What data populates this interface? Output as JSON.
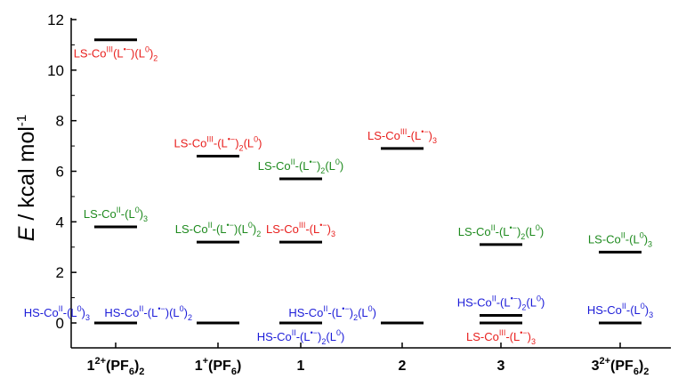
{
  "chart_data": {
    "type": "energy-level",
    "ylabel": "E / kcal mol-1",
    "ylim": [
      0,
      12
    ],
    "yticks": [
      0,
      2,
      4,
      6,
      8,
      10,
      12
    ],
    "categories": [
      {
        "main": "1",
        "sup": "2+",
        "paren": "(PF",
        "sub1": "6",
        "close": ")",
        "sub2": "2"
      },
      {
        "main": "1",
        "sup": "+",
        "paren": "(PF",
        "sub1": "6",
        "close": ")",
        "sub2": ""
      },
      {
        "main": "1",
        "sup": "",
        "paren": "",
        "sub1": "",
        "close": "",
        "sub2": ""
      },
      {
        "main": "2",
        "sup": "",
        "paren": "",
        "sub1": "",
        "close": "",
        "sub2": ""
      },
      {
        "main": "3",
        "sup": "",
        "paren": "",
        "sub1": "",
        "close": "",
        "sub2": ""
      },
      {
        "main": "3",
        "sup": "2+",
        "paren": "(PF",
        "sub1": "6",
        "close": ")",
        "sub2": "2"
      }
    ],
    "colors": {
      "LS-CoIII": "#e8201e",
      "LS-CoII": "#1e8a1e",
      "HS-CoII": "#1c1cd8"
    },
    "levels": [
      {
        "category": 0,
        "value": 0.0,
        "color": "#1c1cd8",
        "label_pos": "left",
        "label": [
          [
            "HS-Co",
            ""
          ],
          [
            "II",
            "sup"
          ],
          [
            "-(L",
            ""
          ],
          [
            "0",
            "sup"
          ],
          [
            ")",
            ""
          ],
          [
            "3",
            "sub"
          ]
        ]
      },
      {
        "category": 0,
        "value": 3.8,
        "color": "#1e8a1e",
        "label_pos": "above",
        "label": [
          [
            "LS-Co",
            ""
          ],
          [
            "II",
            "sup"
          ],
          [
            "-(L",
            ""
          ],
          [
            "0",
            "sup"
          ],
          [
            ")",
            ""
          ],
          [
            "3",
            "sub"
          ]
        ]
      },
      {
        "category": 0,
        "value": 11.2,
        "color": "#e8201e",
        "label_pos": "below",
        "label": [
          [
            "LS-Co",
            ""
          ],
          [
            "III",
            "sup"
          ],
          [
            "(L",
            ""
          ],
          [
            "•−",
            "sup"
          ],
          [
            ")(L",
            ""
          ],
          [
            "0",
            "sup"
          ],
          [
            ")",
            ""
          ],
          [
            "2",
            "sub"
          ]
        ]
      },
      {
        "category": 1,
        "value": 0.0,
        "color": "#1c1cd8",
        "label_pos": "left",
        "label": [
          [
            "HS-Co",
            ""
          ],
          [
            "II",
            "sup"
          ],
          [
            "-(L",
            ""
          ],
          [
            "•−",
            "sup"
          ],
          [
            ")(L",
            ""
          ],
          [
            "0",
            "sup"
          ],
          [
            ")",
            ""
          ],
          [
            "2",
            "sub"
          ]
        ]
      },
      {
        "category": 1,
        "value": 3.2,
        "color": "#1e8a1e",
        "label_pos": "above",
        "label": [
          [
            "LS-Co",
            ""
          ],
          [
            "II",
            "sup"
          ],
          [
            "-(L",
            ""
          ],
          [
            "•−",
            "sup"
          ],
          [
            ")(L",
            ""
          ],
          [
            "0",
            "sup"
          ],
          [
            ")",
            ""
          ],
          [
            "2",
            "sub"
          ]
        ]
      },
      {
        "category": 1,
        "value": 6.6,
        "color": "#e8201e",
        "label_pos": "above",
        "label": [
          [
            "LS-Co",
            ""
          ],
          [
            "III",
            "sup"
          ],
          [
            "-(L",
            ""
          ],
          [
            "•−",
            "sup"
          ],
          [
            ")",
            ""
          ],
          [
            "2",
            "sub"
          ],
          [
            "(L",
            ""
          ],
          [
            "0",
            "sup"
          ],
          [
            ")",
            ""
          ]
        ]
      },
      {
        "category": 2,
        "value": 0.0,
        "color": "#1c1cd8",
        "label_pos": "below",
        "label": [
          [
            "HS-Co",
            ""
          ],
          [
            "II",
            "sup"
          ],
          [
            "-(L",
            ""
          ],
          [
            "•−",
            "sup"
          ],
          [
            ")",
            ""
          ],
          [
            "2",
            "sub"
          ],
          [
            "(L",
            ""
          ],
          [
            "0",
            "sup"
          ],
          [
            ")",
            ""
          ]
        ]
      },
      {
        "category": 2,
        "value": 3.2,
        "color": "#e8201e",
        "label_pos": "above",
        "label": [
          [
            "LS-Co",
            ""
          ],
          [
            "III",
            "sup"
          ],
          [
            "-(L",
            ""
          ],
          [
            "•−",
            "sup"
          ],
          [
            ")",
            ""
          ],
          [
            "3",
            "sub"
          ]
        ]
      },
      {
        "category": 2,
        "value": 5.7,
        "color": "#1e8a1e",
        "label_pos": "above",
        "label": [
          [
            "LS-Co",
            ""
          ],
          [
            "II",
            "sup"
          ],
          [
            "-(L",
            ""
          ],
          [
            "•−",
            "sup"
          ],
          [
            ")",
            ""
          ],
          [
            "2",
            "sub"
          ],
          [
            "(L",
            ""
          ],
          [
            "0",
            "sup"
          ],
          [
            ")",
            ""
          ]
        ]
      },
      {
        "category": 3,
        "value": 0.0,
        "color": "#1c1cd8",
        "label_pos": "left",
        "label": [
          [
            "HS-Co",
            ""
          ],
          [
            "II",
            "sup"
          ],
          [
            "-(L",
            ""
          ],
          [
            "•−",
            "sup"
          ],
          [
            ")",
            ""
          ],
          [
            "2",
            "sub"
          ],
          [
            "(L",
            ""
          ],
          [
            "0",
            "sup"
          ],
          [
            ")",
            ""
          ]
        ]
      },
      {
        "category": 3,
        "value": 6.9,
        "color": "#e8201e",
        "label_pos": "above",
        "label": [
          [
            "LS-Co",
            ""
          ],
          [
            "III",
            "sup"
          ],
          [
            "-(L",
            ""
          ],
          [
            "•−",
            "sup"
          ],
          [
            ")",
            ""
          ],
          [
            "3",
            "sub"
          ]
        ]
      },
      {
        "category": 4,
        "value": 0.0,
        "color": "#e8201e",
        "label_pos": "below",
        "label": [
          [
            "LS-Co",
            ""
          ],
          [
            "III",
            "sup"
          ],
          [
            "-(L",
            ""
          ],
          [
            "•−",
            "sup"
          ],
          [
            ")",
            ""
          ],
          [
            "3",
            "sub"
          ]
        ]
      },
      {
        "category": 4,
        "value": 0.3,
        "color": "#1c1cd8",
        "label_pos": "above",
        "label": [
          [
            "HS-Co",
            ""
          ],
          [
            "II",
            "sup"
          ],
          [
            "-(L",
            ""
          ],
          [
            "•−",
            "sup"
          ],
          [
            ")",
            ""
          ],
          [
            "2",
            "sub"
          ],
          [
            "(L",
            ""
          ],
          [
            "0",
            "sup"
          ],
          [
            ")",
            ""
          ]
        ]
      },
      {
        "category": 4,
        "value": 3.1,
        "color": "#1e8a1e",
        "label_pos": "above",
        "label": [
          [
            "LS-Co",
            ""
          ],
          [
            "II",
            "sup"
          ],
          [
            "-(L",
            ""
          ],
          [
            "•−",
            "sup"
          ],
          [
            ")",
            ""
          ],
          [
            "2",
            "sub"
          ],
          [
            "(L",
            ""
          ],
          [
            "0",
            "sup"
          ],
          [
            ")",
            ""
          ]
        ]
      },
      {
        "category": 5,
        "value": 0.0,
        "color": "#1c1cd8",
        "label_pos": "above",
        "label": [
          [
            "HS-Co",
            ""
          ],
          [
            "II",
            "sup"
          ],
          [
            "-(L",
            ""
          ],
          [
            "0",
            "sup"
          ],
          [
            ")",
            ""
          ],
          [
            "3",
            "sub"
          ]
        ]
      },
      {
        "category": 5,
        "value": 2.8,
        "color": "#1e8a1e",
        "label_pos": "above",
        "label": [
          [
            "LS-Co",
            ""
          ],
          [
            "II",
            "sup"
          ],
          [
            "-(L",
            ""
          ],
          [
            "0",
            "sup"
          ],
          [
            ")",
            ""
          ],
          [
            "3",
            "sub"
          ]
        ]
      }
    ]
  }
}
